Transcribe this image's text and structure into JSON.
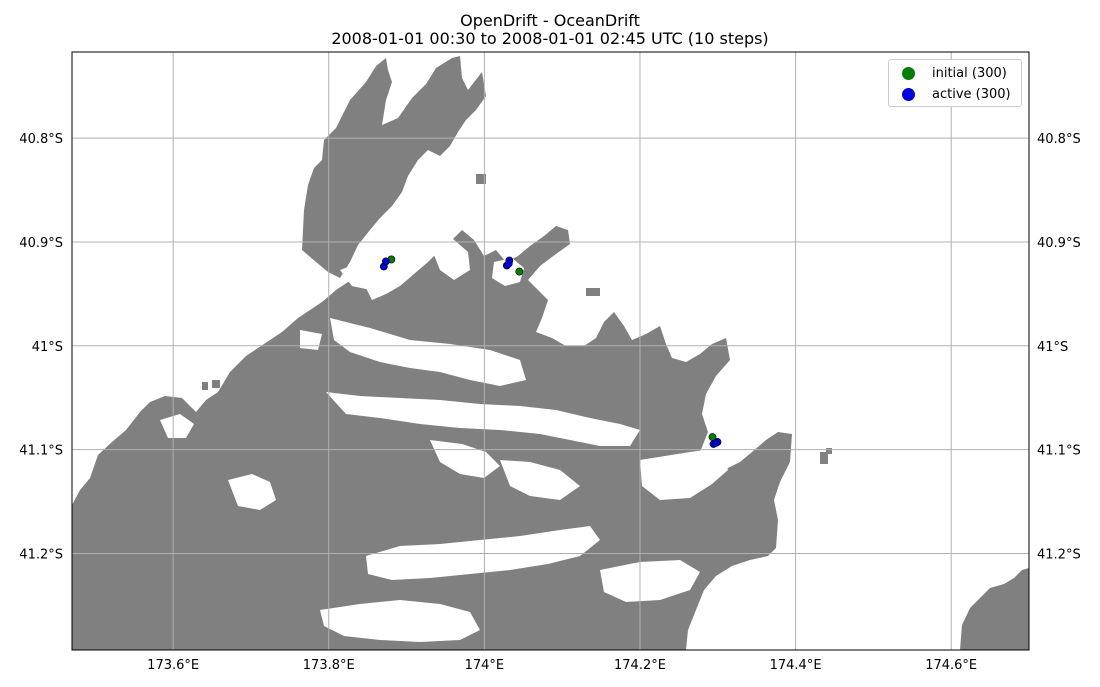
{
  "title": "OpenDrift - OceanDrift",
  "subtitle": "2008-01-01 00:30 to 2008-01-01 02:45 UTC (10 steps)",
  "colors": {
    "land": "#808080",
    "initial": "#008000",
    "active": "#0000dd",
    "grid": "#b0b0b0"
  },
  "legend": [
    {
      "label": "initial (300)",
      "color": "#008000"
    },
    {
      "label": "active (300)",
      "color": "#0000dd"
    }
  ],
  "chart_data": {
    "type": "scatter",
    "xlim": [
      173.47,
      174.7
    ],
    "ylim": [
      -41.293,
      -40.717
    ],
    "grid": true,
    "legend_position": "top-right",
    "x_ticks": [
      {
        "value": 173.6,
        "label": "173.6°E"
      },
      {
        "value": 173.8,
        "label": "173.8°E"
      },
      {
        "value": 174.0,
        "label": "174°E"
      },
      {
        "value": 174.2,
        "label": "174.2°E"
      },
      {
        "value": 174.4,
        "label": "174.4°E"
      },
      {
        "value": 174.6,
        "label": "174.6°E"
      }
    ],
    "y_ticks": [
      {
        "value": -40.8,
        "label": "40.8°S"
      },
      {
        "value": -40.9,
        "label": "40.9°S"
      },
      {
        "value": -41.0,
        "label": "41°S"
      },
      {
        "value": -41.1,
        "label": "41.1°S"
      },
      {
        "value": -41.2,
        "label": "41.2°S"
      }
    ],
    "series": [
      {
        "name": "initial (300)",
        "color": "#008000",
        "points": [
          [
            173.8804,
            -40.9168
          ],
          [
            174.0449,
            -40.9285
          ],
          [
            174.2932,
            -41.0878
          ]
        ]
      },
      {
        "name": "active (300)",
        "color": "#0000dd",
        "points": [
          [
            173.8708,
            -40.9236
          ],
          [
            173.8735,
            -40.9187
          ],
          [
            174.0289,
            -40.9226
          ],
          [
            174.0321,
            -40.9178
          ],
          [
            174.0314,
            -40.9207
          ],
          [
            174.2945,
            -41.0946
          ],
          [
            174.2996,
            -41.0926
          ],
          [
            174.2976,
            -41.0936
          ]
        ]
      }
    ]
  }
}
